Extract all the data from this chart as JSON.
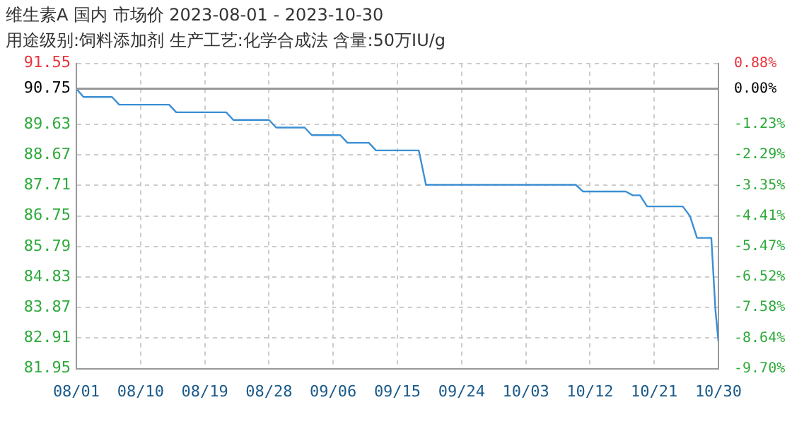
{
  "chart_data": {
    "type": "line",
    "title": "维生素A 国内 市场价 2023-08-01 - 2023-10-30",
    "subtitle": "用途级别:饲料添加剂 生产工艺:化学合成法 含量:50万IU/g",
    "x": [
      "2023-08-01",
      "2023-08-02",
      "2023-08-06",
      "2023-08-07",
      "2023-08-14",
      "2023-08-15",
      "2023-08-22",
      "2023-08-23",
      "2023-08-28",
      "2023-08-29",
      "2023-09-02",
      "2023-09-03",
      "2023-09-07",
      "2023-09-08",
      "2023-09-11",
      "2023-09-12",
      "2023-09-18",
      "2023-09-19",
      "2023-10-10",
      "2023-10-11",
      "2023-10-17",
      "2023-10-18",
      "2023-10-19",
      "2023-10-20",
      "2023-10-25",
      "2023-10-26",
      "2023-10-27",
      "2023-10-29",
      "2023-10-29T14:00",
      "2023-10-30"
    ],
    "series": [
      {
        "color": "#3b8fd4",
        "values": [
          90.75,
          90.49,
          90.49,
          90.25,
          90.25,
          90.01,
          90.01,
          89.77,
          89.77,
          89.53,
          89.53,
          89.29,
          89.29,
          89.05,
          89.05,
          88.81,
          88.81,
          87.73,
          87.73,
          87.52,
          87.52,
          87.4,
          87.4,
          87.05,
          87.05,
          86.75,
          86.06,
          86.06,
          83.77,
          82.8
        ]
      }
    ],
    "xlim": [
      "2023-08-01",
      "2023-10-30"
    ],
    "xticks": [
      {
        "value": "2023-08-01",
        "label": "08/01"
      },
      {
        "value": "2023-08-10",
        "label": "08/10"
      },
      {
        "value": "2023-08-19",
        "label": "08/19"
      },
      {
        "value": "2023-08-28",
        "label": "08/28"
      },
      {
        "value": "2023-09-06",
        "label": "09/06"
      },
      {
        "value": "2023-09-15",
        "label": "09/15"
      },
      {
        "value": "2023-09-24",
        "label": "09/24"
      },
      {
        "value": "2023-10-03",
        "label": "10/03"
      },
      {
        "value": "2023-10-12",
        "label": "10/12"
      },
      {
        "value": "2023-10-21",
        "label": "10/21"
      },
      {
        "value": "2023-10-30",
        "label": "10/30"
      }
    ],
    "ylim": [
      81.95,
      91.55
    ],
    "yticks": [
      81.95,
      82.91,
      83.87,
      84.83,
      85.79,
      86.75,
      87.71,
      88.67,
      89.63,
      90.75,
      91.55
    ],
    "y2lim": [
      -9.7,
      0.88
    ],
    "y2ticks": [
      {
        "value": -9.7,
        "label": "-9.70%"
      },
      {
        "value": -8.64,
        "label": "-8.64%"
      },
      {
        "value": -7.58,
        "label": "-7.58%"
      },
      {
        "value": -6.52,
        "label": "-6.52%"
      },
      {
        "value": -5.47,
        "label": "-5.47%"
      },
      {
        "value": -4.41,
        "label": "-4.41%"
      },
      {
        "value": -3.35,
        "label": "-3.35%"
      },
      {
        "value": -2.29,
        "label": "-2.29%"
      },
      {
        "value": -1.23,
        "label": "-1.23%"
      },
      {
        "value": 0,
        "label": "0.00%"
      },
      {
        "value": 0.88,
        "label": "0.88%"
      }
    ],
    "ref_lines": [
      {
        "axis": "y",
        "value": 90.75,
        "color": "#999999"
      }
    ],
    "grid": true,
    "legend": false,
    "marker": "none",
    "line_style": "solid"
  }
}
